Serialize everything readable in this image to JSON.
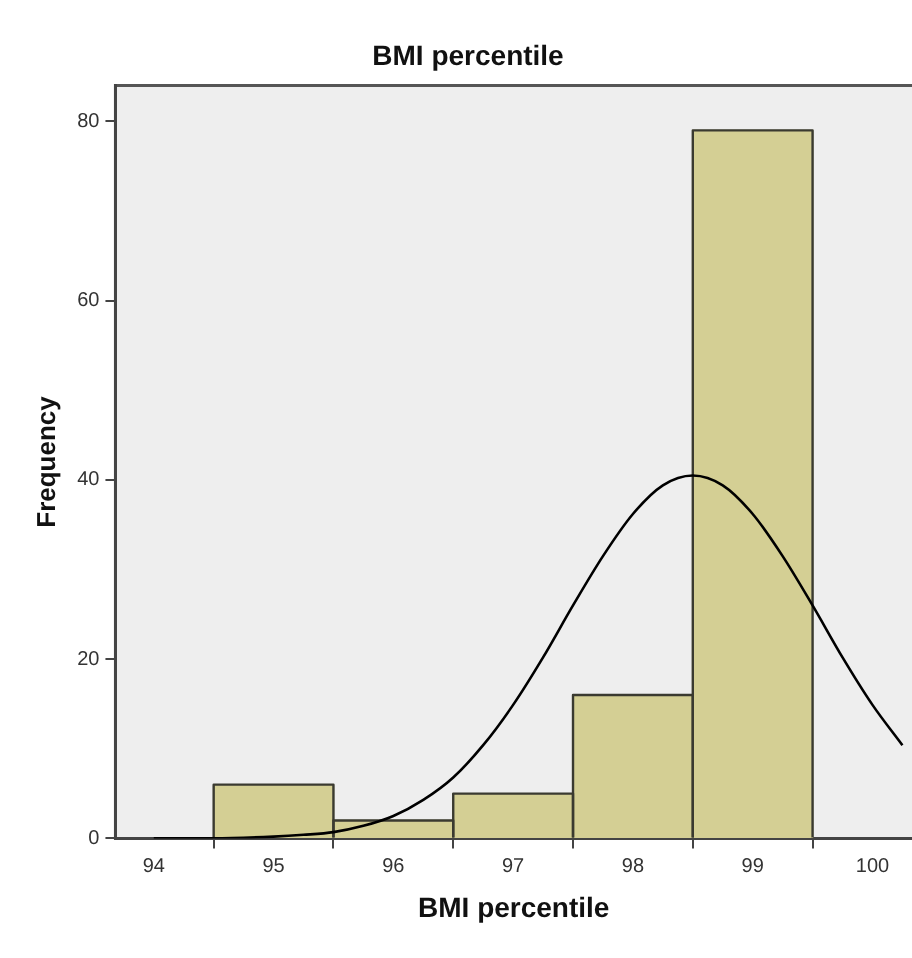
{
  "chart_data": {
    "type": "histogram",
    "title": "BMI percentile",
    "xlabel": "BMI percentile",
    "ylabel": "Frequency",
    "bins": [
      94.5,
      95.5,
      96.5,
      97.5,
      98.5,
      99.5
    ],
    "values": [
      6,
      2,
      5,
      16,
      79
    ],
    "color": "#d4cf94",
    "series": [
      {
        "type": "line",
        "color": "#000000",
        "x": [
          94,
          94.5,
          95,
          95.25,
          95.5,
          95.75,
          96,
          96.25,
          96.5,
          96.75,
          97,
          97.25,
          97.5,
          97.75,
          98,
          98.25,
          98.5,
          98.75,
          99,
          99.25,
          99.5,
          99.75,
          100,
          100.25
        ],
        "values": [
          0.0,
          0.0,
          0.2,
          0.4,
          0.7,
          1.4,
          2.5,
          4.3,
          6.8,
          10.4,
          14.9,
          20.2,
          26.0,
          31.5,
          36.2,
          39.4,
          40.5,
          39.4,
          36.2,
          31.5,
          26.0,
          20.2,
          14.9,
          10.4
        ]
      }
    ],
    "xlim": [
      93.68,
      100.33
    ],
    "xticks": [
      94,
      95,
      96,
      97,
      98,
      99,
      100
    ],
    "ylim": [
      0,
      84
    ],
    "yticks": [
      0,
      20,
      40,
      60,
      80
    ],
    "grid": false,
    "legend": false,
    "marker": "none"
  }
}
